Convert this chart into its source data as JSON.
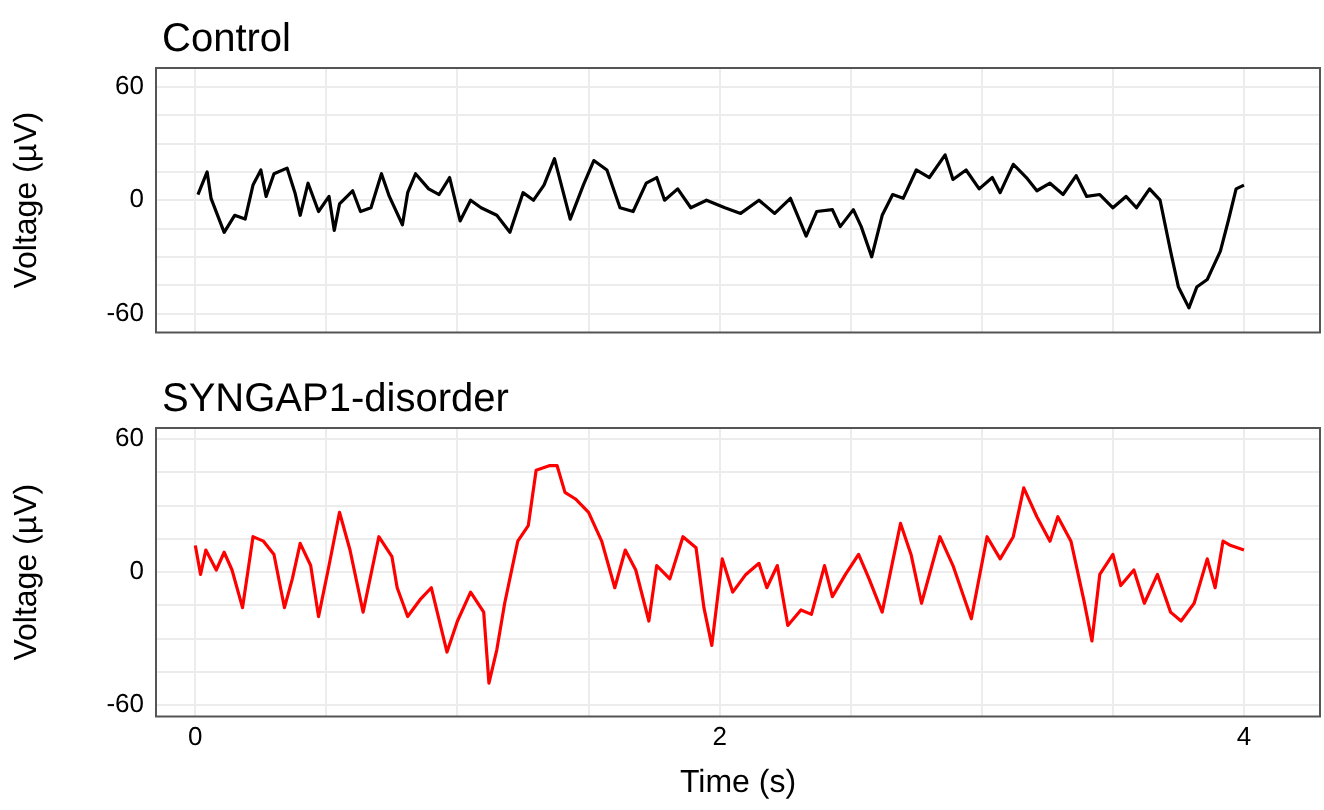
{
  "chart_data": [
    {
      "type": "line",
      "title": "Control",
      "ylabel": "Voltage (µV)",
      "xlim": [
        -0.15,
        4.29
      ],
      "ylim": [
        -70,
        70
      ],
      "grid": true,
      "tick_labels": "y",
      "marker": "none",
      "xticks": [
        0,
        {
          "value": 0.5,
          "label": null
        },
        {
          "value": 1,
          "label": null
        },
        {
          "value": 1.5,
          "label": null
        },
        {
          "value": 2,
          "label": null
        },
        {
          "value": 2.5,
          "label": null
        },
        {
          "value": 3,
          "label": null
        },
        {
          "value": 3.5,
          "label": null
        },
        {
          "value": 4,
          "label": null
        }
      ],
      "yticks": [
        -60,
        {
          "value": -45,
          "label": null
        },
        {
          "value": -30,
          "label": null
        },
        {
          "value": -15,
          "label": null
        },
        0,
        {
          "value": 15,
          "label": null
        },
        {
          "value": 30,
          "label": null
        },
        {
          "value": 45,
          "label": null
        },
        60
      ],
      "series": [
        {
          "color": "#000000",
          "x": [
            0.01,
            0.045,
            0.06,
            0.11,
            0.15,
            0.19,
            0.22,
            0.25,
            0.27,
            0.3,
            0.35,
            0.38,
            0.4,
            0.43,
            0.47,
            0.51,
            0.53,
            0.55,
            0.6,
            0.63,
            0.67,
            0.71,
            0.74,
            0.79,
            0.81,
            0.84,
            0.89,
            0.93,
            0.97,
            1.01,
            1.05,
            1.09,
            1.15,
            1.2,
            1.25,
            1.29,
            1.33,
            1.37,
            1.4,
            1.43,
            1.48,
            1.52,
            1.57,
            1.62,
            1.67,
            1.72,
            1.76,
            1.79,
            1.84,
            1.89,
            1.95,
            2.02,
            2.08,
            2.15,
            2.21,
            2.27,
            2.33,
            2.37,
            2.43,
            2.46,
            2.51,
            2.54,
            2.58,
            2.62,
            2.66,
            2.7,
            2.75,
            2.8,
            2.86,
            2.89,
            2.94,
            2.99,
            3.04,
            3.07,
            3.12,
            3.17,
            3.21,
            3.26,
            3.31,
            3.36,
            3.4,
            3.45,
            3.5,
            3.55,
            3.59,
            3.64,
            3.68,
            3.72,
            3.75,
            3.79,
            3.82,
            3.86,
            3.88,
            3.91,
            3.94,
            3.97,
            4.0
          ],
          "values": [
            3,
            15,
            1,
            -17,
            -8,
            -10,
            8,
            16,
            2,
            14,
            17,
            4,
            -8,
            9,
            -6,
            2,
            -16,
            -2,
            5,
            -6,
            -4,
            14,
            2,
            -13,
            4,
            14,
            6,
            3,
            12,
            -11,
            0,
            -4,
            -8,
            -17,
            4,
            0,
            8,
            22,
            6,
            -10,
            8,
            21,
            16,
            -4,
            -6,
            9,
            12,
            0,
            6,
            -4,
            0,
            -4,
            -7,
            0,
            -7,
            1,
            -19,
            -6,
            -5,
            -14,
            -5,
            -14,
            -30,
            -8,
            3,
            1,
            16,
            12,
            24,
            11,
            16,
            6,
            12,
            4,
            19,
            12,
            5,
            9,
            3,
            13,
            2,
            3,
            -4,
            2,
            -4,
            6,
            0,
            -27,
            -46,
            -57,
            -46,
            -42,
            -36,
            -27,
            -11,
            6,
            8
          ]
        }
      ]
    },
    {
      "type": "line",
      "title": "SYNGAP1-disorder",
      "xlabel": "Time (s)",
      "ylabel": "Voltage (µV)",
      "xlim": [
        -0.15,
        4.29
      ],
      "ylim": [
        -65,
        65
      ],
      "grid": true,
      "marker": "none",
      "xticks": [
        0,
        {
          "value": 0.5,
          "label": null
        },
        {
          "value": 1,
          "label": null
        },
        {
          "value": 1.5,
          "label": null
        },
        2,
        {
          "value": 2.5,
          "label": null
        },
        {
          "value": 3,
          "label": null
        },
        {
          "value": 3.5,
          "label": null
        },
        4
      ],
      "yticks": [
        -60,
        {
          "value": -45,
          "label": null
        },
        {
          "value": -30,
          "label": null
        },
        {
          "value": -15,
          "label": null
        },
        0,
        {
          "value": 15,
          "label": null
        },
        {
          "value": 30,
          "label": null
        },
        {
          "value": 45,
          "label": null
        },
        60
      ],
      "series": [
        {
          "color": "#ff0000",
          "x": [
            0.0,
            0.02,
            0.04,
            0.08,
            0.11,
            0.14,
            0.18,
            0.22,
            0.26,
            0.3,
            0.34,
            0.37,
            0.4,
            0.44,
            0.47,
            0.51,
            0.55,
            0.59,
            0.64,
            0.7,
            0.75,
            0.77,
            0.81,
            0.86,
            0.9,
            0.96,
            1.0,
            1.05,
            1.1,
            1.12,
            1.15,
            1.18,
            1.23,
            1.27,
            1.3,
            1.35,
            1.38,
            1.41,
            1.45,
            1.5,
            1.55,
            1.6,
            1.64,
            1.68,
            1.73,
            1.76,
            1.81,
            1.86,
            1.91,
            1.94,
            1.97,
            2.01,
            2.05,
            2.1,
            2.15,
            2.18,
            2.22,
            2.26,
            2.31,
            2.35,
            2.4,
            2.43,
            2.48,
            2.53,
            2.57,
            2.62,
            2.69,
            2.73,
            2.77,
            2.84,
            2.89,
            2.96,
            3.02,
            3.07,
            3.12,
            3.16,
            3.21,
            3.26,
            3.29,
            3.34,
            3.39,
            3.42,
            3.45,
            3.5,
            3.53,
            3.58,
            3.62,
            3.67,
            3.72,
            3.76,
            3.81,
            3.86,
            3.89,
            3.92,
            3.95,
            4.0
          ],
          "values": [
            12,
            -1,
            10,
            1,
            9,
            1,
            -16,
            16,
            14,
            8,
            -16,
            -3,
            13,
            3,
            -20,
            3,
            27,
            10,
            -18,
            16,
            7,
            -7,
            -20,
            -12,
            -7,
            -36,
            -22,
            -9,
            -18,
            -50,
            -35,
            -14,
            14,
            21,
            46,
            48,
            48,
            36,
            33,
            27,
            14,
            -7,
            10,
            1,
            -22,
            3,
            -3,
            16,
            11,
            -16,
            -33,
            6,
            -9,
            -1,
            4,
            -7,
            3,
            -24,
            -17,
            -19,
            3,
            -11,
            -1,
            8,
            -3,
            -18,
            22,
            8,
            -14,
            16,
            3,
            -21,
            16,
            6,
            16,
            38,
            25,
            14,
            25,
            14,
            -13,
            -31,
            -1,
            8,
            -6,
            1,
            -14,
            -1,
            -18,
            -22,
            -14,
            6,
            -7,
            14,
            12,
            10
          ]
        }
      ]
    }
  ]
}
